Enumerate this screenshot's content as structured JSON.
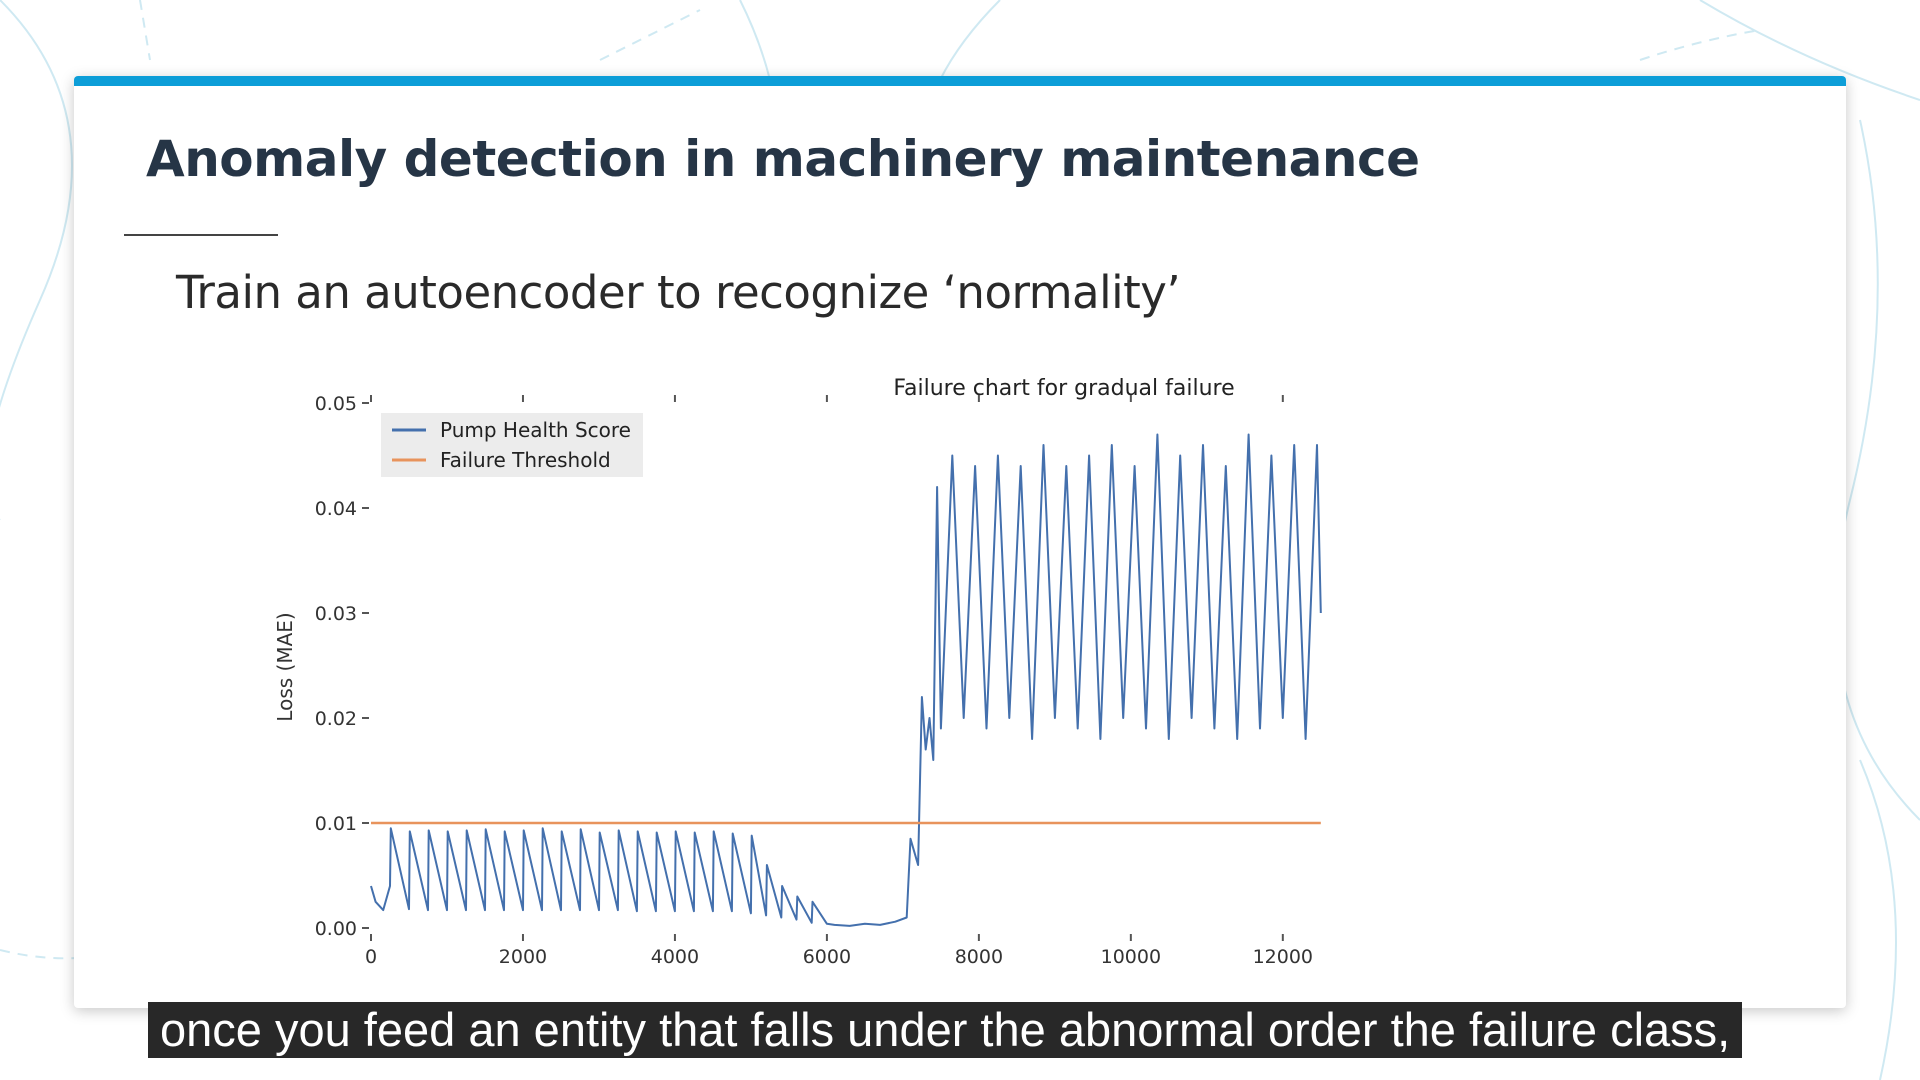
{
  "slide": {
    "title": "Anomaly detection in machinery maintenance",
    "subtitle": "Train an autoencoder to recognize ‘normality’"
  },
  "caption": "once you feed an entity that falls under the abnormal order the failure class,",
  "colors": {
    "accent": "#0d9ed8",
    "title": "#263546",
    "health_series": "#4470ad",
    "threshold_series": "#e8935c",
    "legend_bg": "#ececec"
  },
  "chart_data": {
    "type": "line",
    "title": "Failure chart for gradual failure",
    "xlabel": "",
    "ylabel": "Loss (MAE)",
    "xlim": [
      0,
      12700
    ],
    "ylim": [
      0,
      0.05
    ],
    "xticks": [
      0,
      2000,
      4000,
      6000,
      8000,
      10000,
      12000
    ],
    "xtick_labels": [
      "0",
      "2000",
      "4000",
      "6000",
      "8000",
      "10000",
      "12000"
    ],
    "yticks": [
      0,
      0.01,
      0.02,
      0.03,
      0.04,
      0.05
    ],
    "ytick_labels": [
      "0.00",
      "0.01",
      "0.02",
      "0.03",
      "0.04",
      "0.05"
    ],
    "grid": false,
    "legend_position": "top-left",
    "series": [
      {
        "name": "Pump Health Score",
        "x": [
          0,
          60,
          160,
          250,
          260,
          500,
          510,
          750,
          760,
          1000,
          1010,
          1250,
          1260,
          1500,
          1510,
          1750,
          1760,
          2000,
          2010,
          2250,
          2260,
          2500,
          2510,
          2750,
          2760,
          3000,
          3010,
          3250,
          3260,
          3500,
          3510,
          3750,
          3760,
          4000,
          4010,
          4250,
          4260,
          4500,
          4510,
          4750,
          4760,
          5000,
          5010,
          5200,
          5210,
          5400,
          5410,
          5600,
          5610,
          5800,
          5810,
          6000,
          6100,
          6300,
          6500,
          6700,
          6900,
          7050,
          7100,
          7200,
          7250,
          7300,
          7350,
          7400,
          7450,
          7500,
          7650,
          7800,
          7950,
          8100,
          8250,
          8400,
          8550,
          8700,
          8850,
          9000,
          9150,
          9300,
          9450,
          9600,
          9750,
          9900,
          10050,
          10200,
          10350,
          10500,
          10650,
          10800,
          10950,
          11100,
          11250,
          11400,
          11550,
          11700,
          11850,
          12000,
          12150,
          12300,
          12450,
          12500
        ],
        "values": [
          0.004,
          0.0025,
          0.0017,
          0.004,
          0.0095,
          0.0018,
          0.0092,
          0.0017,
          0.0093,
          0.0017,
          0.0092,
          0.0017,
          0.0093,
          0.0017,
          0.0094,
          0.0017,
          0.0092,
          0.0017,
          0.0093,
          0.0017,
          0.0095,
          0.0017,
          0.0092,
          0.0017,
          0.0094,
          0.0017,
          0.0091,
          0.0017,
          0.0093,
          0.0016,
          0.0092,
          0.0016,
          0.0091,
          0.0016,
          0.0092,
          0.0016,
          0.0091,
          0.0016,
          0.0092,
          0.0016,
          0.009,
          0.0014,
          0.0088,
          0.0012,
          0.006,
          0.001,
          0.004,
          0.0008,
          0.003,
          0.0005,
          0.0025,
          0.0004,
          0.0003,
          0.0002,
          0.0004,
          0.0003,
          0.0006,
          0.001,
          0.0085,
          0.006,
          0.022,
          0.017,
          0.02,
          0.016,
          0.042,
          0.019,
          0.045,
          0.02,
          0.044,
          0.019,
          0.045,
          0.02,
          0.044,
          0.018,
          0.046,
          0.02,
          0.044,
          0.019,
          0.045,
          0.018,
          0.046,
          0.02,
          0.044,
          0.019,
          0.047,
          0.018,
          0.045,
          0.02,
          0.046,
          0.019,
          0.044,
          0.018,
          0.047,
          0.019,
          0.045,
          0.02,
          0.046,
          0.018,
          0.046,
          0.03
        ]
      },
      {
        "name": "Failure Threshold",
        "x": [
          0,
          12500
        ],
        "values": [
          0.01,
          0.01
        ]
      }
    ]
  }
}
